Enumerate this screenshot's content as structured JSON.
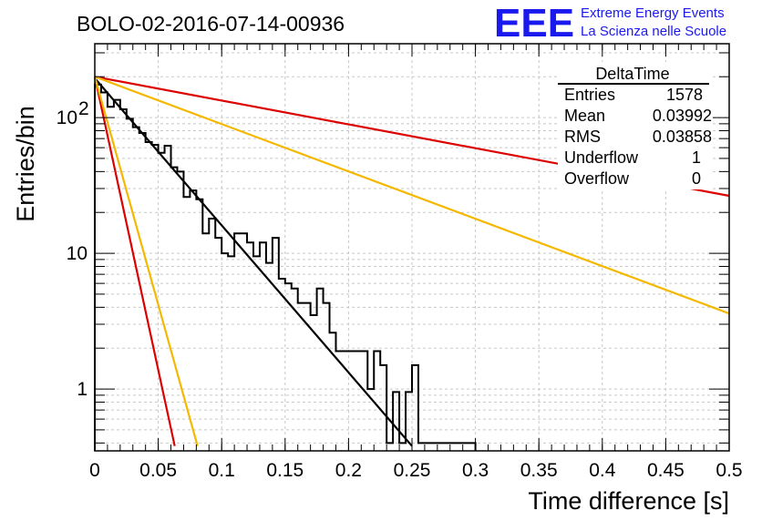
{
  "chart_data": {
    "type": "histogram",
    "title": "BOLO-02-2016-07-14-00936",
    "xlabel": "Time difference [s]",
    "ylabel": "Entries/bin",
    "xlim": [
      0,
      0.5
    ],
    "ylim": [
      0.35,
      350
    ],
    "yscale": "log",
    "grid": true,
    "x_ticks": [
      "0",
      "0.05",
      "0.1",
      "0.15",
      "0.2",
      "0.25",
      "0.3",
      "0.35",
      "0.4",
      "0.45",
      "0.5"
    ],
    "y_ticks": [
      {
        "value": 1,
        "label": "1"
      },
      {
        "value": 10,
        "label": "10"
      },
      {
        "value": 100,
        "label": "10",
        "exponent": "2"
      }
    ],
    "bin_width": 0.005,
    "histogram": [
      175,
      153,
      120,
      135,
      115,
      98,
      85,
      77,
      66,
      63,
      55,
      62,
      43,
      40,
      26,
      29,
      25,
      14,
      18,
      13,
      10,
      9.5,
      14,
      14,
      12,
      9.5,
      12,
      8.5,
      13,
      6.5,
      6,
      5.5,
      4.3,
      4.3,
      3.5,
      5.5,
      4.3,
      2.6,
      1.9,
      1.9,
      1.9,
      1.9,
      1.9,
      1,
      1.9,
      1.5,
      0.4,
      0.95,
      0.4,
      0.95,
      1.5,
      0.4,
      0.4,
      0.4,
      0.4,
      0.4,
      0.4,
      0.4,
      0.4,
      0.4
    ],
    "curves": [
      {
        "color": "#000000",
        "x_end": 0.25,
        "y0": 195,
        "y_end": 0.38
      },
      {
        "color": "#dd0000",
        "x_end": 0.5,
        "y0": 200,
        "y_end": 26.5
      },
      {
        "color": "#f5b800",
        "x_end": 0.5,
        "y0": 200,
        "y_end": 3.6
      },
      {
        "color": "#dd0000",
        "x_end": 0.063,
        "y0": 200,
        "y_end": 0.38
      },
      {
        "color": "#f5b800",
        "x_end": 0.081,
        "y0": 200,
        "y_end": 0.38
      }
    ]
  },
  "stats_box": {
    "title": "DeltaTime",
    "rows": [
      {
        "label": "Entries",
        "value": "1578"
      },
      {
        "label": "Mean",
        "value": "0.03992"
      },
      {
        "label": "RMS",
        "value": "0.03858"
      },
      {
        "label": "Underflow",
        "value": "1"
      },
      {
        "label": "Overflow",
        "value": "0"
      }
    ]
  },
  "logo": {
    "mark": "EEE",
    "line1": "Extreme Energy Events",
    "line2": "La Scienza nelle Scuole",
    "color": "#1a1aee"
  }
}
